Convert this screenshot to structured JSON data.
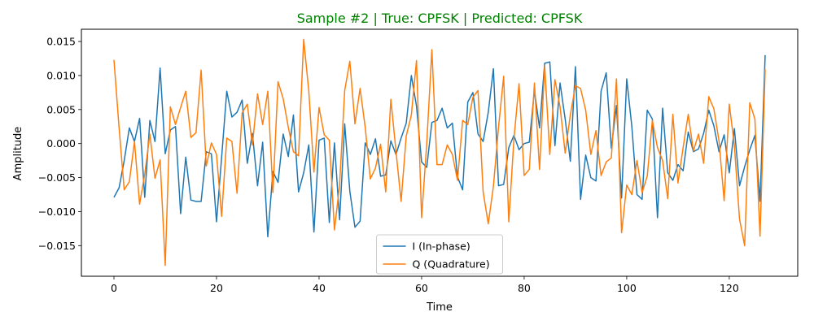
{
  "chart_data": {
    "type": "line",
    "title": "Sample #2 | True: CPFSK | Predicted: CPFSK",
    "title_color": "#008000",
    "xlabel": "Time",
    "ylabel": "Amplitude",
    "xlim": [
      -6.35,
      133.35
    ],
    "ylim": [
      -0.0195,
      0.0168
    ],
    "xticks": [
      0,
      20,
      40,
      60,
      80,
      100,
      120
    ],
    "xtick_labels": [
      "0",
      "20",
      "40",
      "60",
      "80",
      "100",
      "120"
    ],
    "yticks": [
      -0.015,
      -0.01,
      -0.005,
      0.0,
      0.005,
      0.01,
      0.015
    ],
    "ytick_labels": [
      "−0.015",
      "−0.010",
      "−0.005",
      "0.000",
      "0.005",
      "0.010",
      "0.015"
    ],
    "grid": false,
    "legend_position": "bottom-center",
    "x": [
      0,
      1,
      2,
      3,
      4,
      5,
      6,
      7,
      8,
      9,
      10,
      11,
      12,
      13,
      14,
      15,
      16,
      17,
      18,
      19,
      20,
      21,
      22,
      23,
      24,
      25,
      26,
      27,
      28,
      29,
      30,
      31,
      32,
      33,
      34,
      35,
      36,
      37,
      38,
      39,
      40,
      41,
      42,
      43,
      44,
      45,
      46,
      47,
      48,
      49,
      50,
      51,
      52,
      53,
      54,
      55,
      56,
      57,
      58,
      59,
      60,
      61,
      62,
      63,
      64,
      65,
      66,
      67,
      68,
      69,
      70,
      71,
      72,
      73,
      74,
      75,
      76,
      77,
      78,
      79,
      80,
      81,
      82,
      83,
      84,
      85,
      86,
      87,
      88,
      89,
      90,
      91,
      92,
      93,
      94,
      95,
      96,
      97,
      98,
      99,
      100,
      101,
      102,
      103,
      104,
      105,
      106,
      107,
      108,
      109,
      110,
      111,
      112,
      113,
      114,
      115,
      116,
      117,
      118,
      119,
      120,
      121,
      122,
      123,
      124,
      125,
      126,
      127
    ],
    "series": [
      {
        "name": "I (In-phase)",
        "color": "#1f77b4",
        "values": [
          -0.0079,
          -0.0065,
          -0.0025,
          0.0023,
          0.0003,
          0.0037,
          -0.0079,
          0.0034,
          0.0003,
          0.0111,
          -0.0015,
          0.002,
          0.0025,
          -0.0103,
          -0.002,
          -0.0083,
          -0.0085,
          -0.0085,
          -0.0012,
          -0.0015,
          -0.0115,
          -0.002,
          0.0077,
          0.0039,
          0.0046,
          0.0064,
          -0.0029,
          0.0015,
          -0.0062,
          0.0002,
          -0.0137,
          -0.0041,
          -0.0057,
          0.0014,
          -0.0019,
          0.0042,
          -0.0071,
          -0.0043,
          -0.0002,
          -0.013,
          0.0005,
          0.0008,
          -0.0116,
          0.0001,
          -0.0112,
          0.0029,
          -0.007,
          -0.0123,
          -0.0114,
          0.0001,
          -0.0016,
          0.0007,
          -0.0048,
          -0.0046,
          0.0004,
          -0.0016,
          0.0008,
          0.003,
          0.01,
          0.0055,
          -0.0027,
          -0.0035,
          0.0031,
          0.0034,
          0.0052,
          0.0023,
          0.003,
          -0.0049,
          -0.0068,
          0.0061,
          0.0075,
          0.0014,
          0.0003,
          0.0046,
          0.011,
          -0.0062,
          -0.006,
          -0.0006,
          0.0012,
          -0.0009,
          0.0,
          0.0002,
          0.0078,
          0.0023,
          0.0118,
          0.012,
          -0.0003,
          0.0089,
          0.0036,
          -0.0026,
          0.0113,
          -0.0082,
          -0.0017,
          -0.005,
          -0.0055,
          0.0077,
          0.0104,
          -0.0007,
          0.0056,
          -0.008,
          0.0095,
          0.0025,
          -0.0075,
          -0.0082,
          0.0049,
          0.0036,
          -0.0109,
          0.0052,
          -0.0043,
          -0.0054,
          -0.0031,
          -0.004,
          0.0017,
          -0.0012,
          -0.0008,
          0.0015,
          0.0049,
          0.0026,
          -0.0012,
          0.0013,
          -0.0043,
          0.0022,
          -0.0062,
          -0.0034,
          -0.0009,
          0.0012,
          -0.0085,
          0.013
        ]
      },
      {
        "name": "Q (Quadrature)",
        "color": "#ff7f0e",
        "values": [
          0.0123,
          0.0023,
          -0.0068,
          -0.0056,
          0.0003,
          -0.0089,
          -0.0045,
          0.0014,
          -0.0051,
          -0.0024,
          -0.0179,
          0.0054,
          0.0028,
          0.0053,
          0.0077,
          0.0009,
          0.0016,
          0.0108,
          -0.0033,
          0.0001,
          -0.0016,
          -0.0107,
          0.0008,
          0.0003,
          -0.0073,
          0.0045,
          0.0058,
          -0.0002,
          0.0073,
          0.0028,
          0.0077,
          -0.0072,
          0.0091,
          0.0066,
          0.0024,
          -0.0012,
          -0.0018,
          0.0153,
          0.0077,
          -0.0042,
          0.0053,
          0.0013,
          0.0005,
          -0.0127,
          -0.0061,
          0.0078,
          0.0121,
          0.0029,
          0.0081,
          0.0024,
          -0.0052,
          -0.0036,
          -0.0001,
          -0.0071,
          0.0065,
          -0.0011,
          -0.0085,
          0.0011,
          0.0042,
          0.0122,
          -0.0109,
          0.0,
          0.0138,
          -0.0031,
          -0.0031,
          -0.0002,
          -0.0016,
          -0.0054,
          0.0034,
          0.0028,
          0.0068,
          0.0078,
          -0.0071,
          -0.0118,
          -0.0063,
          0.0024,
          0.0099,
          -0.0115,
          0.0006,
          0.0088,
          -0.0047,
          -0.0038,
          0.0089,
          -0.0038,
          0.0114,
          -0.0016,
          0.0094,
          0.0054,
          -0.0014,
          0.0042,
          0.0085,
          0.0081,
          0.0049,
          -0.0016,
          0.0019,
          -0.0047,
          -0.0027,
          -0.0021,
          0.0095,
          -0.0131,
          -0.0061,
          -0.0075,
          -0.0025,
          -0.0072,
          -0.0048,
          0.0034,
          -0.0006,
          -0.0025,
          -0.0081,
          0.0043,
          -0.0058,
          -0.0006,
          0.0043,
          -0.0011,
          0.0014,
          -0.0029,
          0.0069,
          0.0051,
          0.0004,
          -0.0084,
          0.0058,
          -0.0003,
          -0.0111,
          -0.015,
          0.006,
          0.0036,
          -0.0136,
          0.0109
        ]
      }
    ]
  }
}
